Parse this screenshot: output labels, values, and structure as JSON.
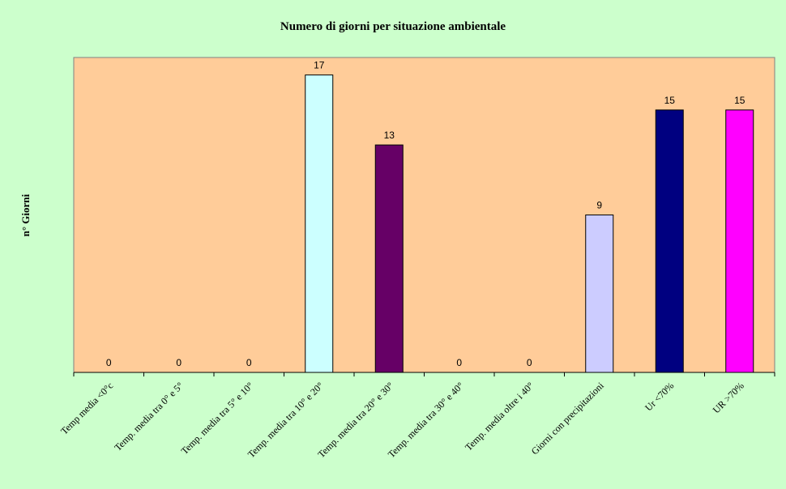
{
  "chart_data": {
    "type": "bar",
    "title": "Numero di giorni per situazione ambientale",
    "xlabel": "",
    "ylabel": "n° Giorni",
    "ylim": [
      0,
      18
    ],
    "grid": false,
    "legend": "none",
    "categories": [
      "Temp media <0°c",
      "Temp. media tra 0° e 5°",
      "Temp. media tra 5° e 10°",
      "Temp. media tra 10° e 20°",
      "Temp. media tra 20° e 30°",
      "Temp. media tra 30° e 40°",
      "Temp. media oltre i 40°",
      "Giorni con precipitazioni",
      "Ur <70%",
      "UR >70%"
    ],
    "values": [
      0,
      0,
      0,
      17,
      13,
      0,
      0,
      9,
      15,
      15
    ],
    "colors": [
      "#ccffff",
      "#ccffff",
      "#ccffff",
      "#ccffff",
      "#660066",
      "#660066",
      "#660066",
      "#ccccff",
      "#000080",
      "#ff00ff"
    ],
    "plot_background": "#ffcc99",
    "page_background": "#ccffcc"
  }
}
